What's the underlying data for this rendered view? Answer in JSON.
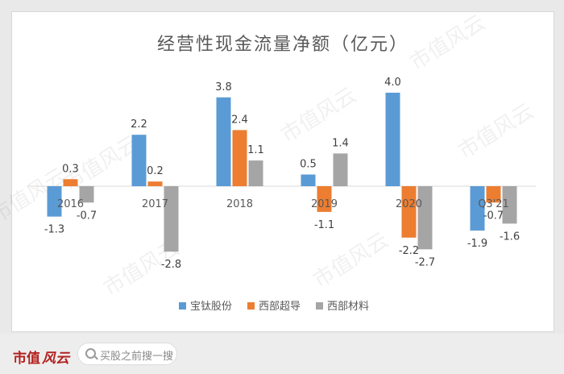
{
  "chart_data": {
    "type": "bar",
    "title": "经营性现金流量净额（亿元）",
    "categories": [
      "2016",
      "2017",
      "2018",
      "2019",
      "2020",
      "Q3'21"
    ],
    "series": [
      {
        "name": "宝钛股份",
        "color": "#5b9bd5",
        "values": [
          -1.3,
          2.2,
          3.8,
          0.5,
          4.0,
          -1.9
        ]
      },
      {
        "name": "西部超导",
        "color": "#ed7d31",
        "values": [
          0.3,
          0.2,
          2.4,
          -1.1,
          -2.2,
          -0.7
        ]
      },
      {
        "name": "西部材料",
        "color": "#a5a5a5",
        "values": [
          -0.7,
          -2.8,
          1.1,
          1.4,
          -2.7,
          -1.6
        ]
      }
    ],
    "ylim": [
      -3,
      4.2
    ],
    "legend": "bottom",
    "grid": false
  },
  "watermark": "市值风云",
  "footer": {
    "logo": "市值",
    "logo_script": "风云",
    "search_text": "买股之前搜一搜"
  }
}
